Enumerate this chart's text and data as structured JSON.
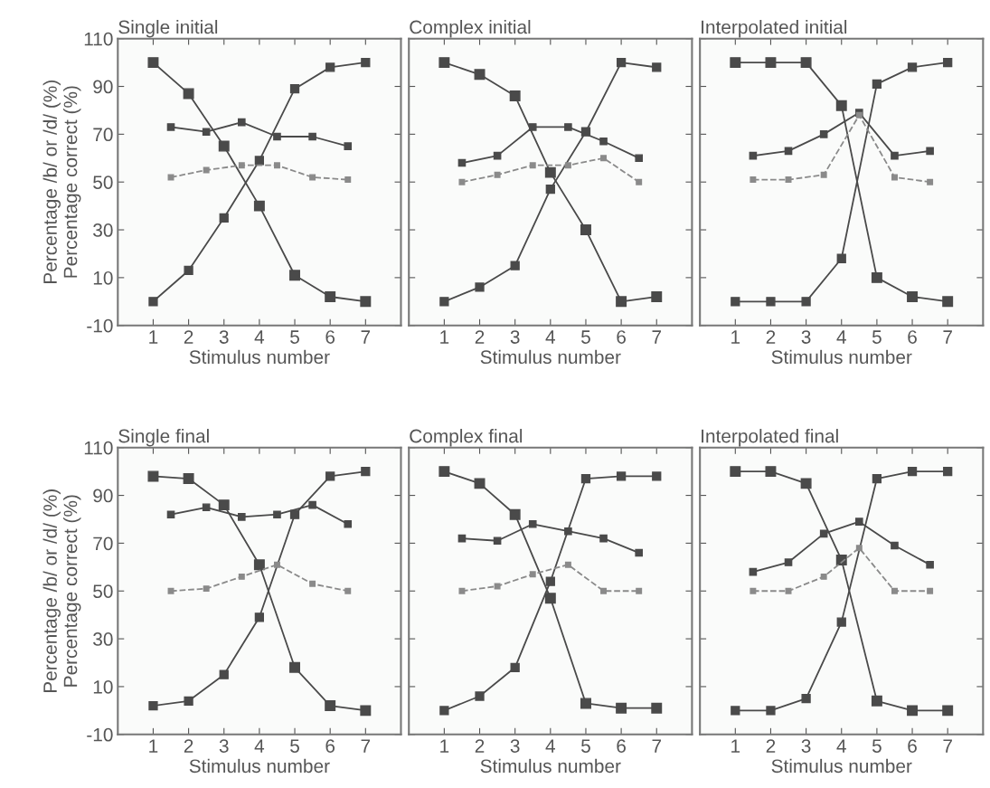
{
  "chart_data": [
    {
      "type": "line",
      "title": "Single initial",
      "xlabel": "Stimulus number",
      "ylabel": "Percentage /b/ or /d/ (%)\nPercentage correct (%)",
      "xlim": [
        0,
        8
      ],
      "xticks": [
        1,
        2,
        3,
        4,
        5,
        6,
        7
      ],
      "ylim": [
        -10,
        110
      ],
      "yticks": [
        -10,
        10,
        30,
        50,
        70,
        90,
        110
      ],
      "marker": "square",
      "grid": false,
      "series": [
        {
          "color": "#4a4a4a",
          "x": [
            1,
            2,
            3,
            4,
            5,
            6,
            7
          ],
          "values": [
            100,
            87,
            65,
            40,
            11,
            2,
            0
          ]
        },
        {
          "color": "#4a4a4a",
          "x": [
            1,
            2,
            3,
            4,
            5,
            6,
            7
          ],
          "values": [
            0,
            13,
            35,
            59,
            89,
            98,
            100
          ]
        },
        {
          "color": "#4a4a4a",
          "x": [
            1.5,
            2.5,
            3.5,
            4.5,
            5.5,
            6.5
          ],
          "values": [
            73,
            71,
            75,
            69,
            69,
            65
          ]
        },
        {
          "color": "#8a8a8a",
          "line_style": "dashed",
          "x": [
            1.5,
            2.5,
            3.5,
            4.5,
            5.5,
            6.5
          ],
          "values": [
            52,
            55,
            57,
            57,
            52,
            51
          ]
        }
      ]
    },
    {
      "type": "line",
      "title": "Complex initial",
      "xlabel": "Stimulus number",
      "xlim": [
        0,
        8
      ],
      "xticks": [
        1,
        2,
        3,
        4,
        5,
        6,
        7
      ],
      "ylim": [
        -10,
        110
      ],
      "yticks": [
        -10,
        10,
        30,
        50,
        70,
        90,
        110
      ],
      "tick_labels": "x",
      "marker": "square",
      "grid": false,
      "series": [
        {
          "color": "#4a4a4a",
          "x": [
            1,
            2,
            3,
            4,
            5,
            6,
            7
          ],
          "values": [
            100,
            95,
            86,
            54,
            30,
            0,
            2
          ]
        },
        {
          "color": "#4a4a4a",
          "x": [
            1,
            2,
            3,
            4,
            5,
            6,
            7
          ],
          "values": [
            0,
            6,
            15,
            47,
            71,
            100,
            98
          ]
        },
        {
          "color": "#4a4a4a",
          "x": [
            1.5,
            2.5,
            3.5,
            4.5,
            5.5,
            6.5
          ],
          "values": [
            58,
            61,
            73,
            73,
            67,
            60
          ]
        },
        {
          "color": "#8a8a8a",
          "line_style": "dashed",
          "x": [
            1.5,
            2.5,
            3.5,
            4.5,
            5.5,
            6.5
          ],
          "values": [
            50,
            53,
            57,
            57,
            60,
            50
          ]
        }
      ]
    },
    {
      "type": "line",
      "title": "Interpolated initial",
      "xlabel": "Stimulus number",
      "xlim": [
        0,
        8
      ],
      "xticks": [
        1,
        2,
        3,
        4,
        5,
        6,
        7
      ],
      "ylim": [
        -10,
        110
      ],
      "yticks": [
        -10,
        10,
        30,
        50,
        70,
        90,
        110
      ],
      "tick_labels": "x",
      "marker": "square",
      "grid": false,
      "series": [
        {
          "color": "#4a4a4a",
          "x": [
            1,
            2,
            3,
            4,
            5,
            6,
            7
          ],
          "values": [
            100,
            100,
            100,
            82,
            10,
            2,
            0
          ]
        },
        {
          "color": "#4a4a4a",
          "x": [
            1,
            2,
            3,
            4,
            5,
            6,
            7
          ],
          "values": [
            0,
            0,
            0,
            18,
            91,
            98,
            100
          ]
        },
        {
          "color": "#4a4a4a",
          "x": [
            1.5,
            2.5,
            3.5,
            4.5,
            5.5,
            6.5
          ],
          "values": [
            61,
            63,
            70,
            79,
            61,
            63
          ]
        },
        {
          "color": "#8a8a8a",
          "line_style": "dashed",
          "x": [
            1.5,
            2.5,
            3.5,
            4.5,
            5.5,
            6.5
          ],
          "values": [
            51,
            51,
            53,
            78,
            52,
            50
          ]
        }
      ]
    },
    {
      "type": "line",
      "title": "Single final",
      "xlabel": "Stimulus number",
      "ylabel": "Percentage /b/ or /d/ (%)\nPercentage correct (%)",
      "xlim": [
        0,
        8
      ],
      "xticks": [
        1,
        2,
        3,
        4,
        5,
        6,
        7
      ],
      "ylim": [
        -10,
        110
      ],
      "yticks": [
        -10,
        10,
        30,
        50,
        70,
        90,
        110
      ],
      "marker": "square",
      "grid": false,
      "series": [
        {
          "color": "#4a4a4a",
          "x": [
            1,
            2,
            3,
            4,
            5,
            6,
            7
          ],
          "values": [
            98,
            97,
            86,
            61,
            18,
            2,
            0
          ]
        },
        {
          "color": "#4a4a4a",
          "x": [
            1,
            2,
            3,
            4,
            5,
            6,
            7
          ],
          "values": [
            2,
            4,
            15,
            39,
            82,
            98,
            100
          ]
        },
        {
          "color": "#4a4a4a",
          "x": [
            1.5,
            2.5,
            3.5,
            4.5,
            5.5,
            6.5
          ],
          "values": [
            82,
            85,
            81,
            82,
            86,
            78
          ]
        },
        {
          "color": "#8a8a8a",
          "line_style": "dashed",
          "x": [
            1.5,
            2.5,
            3.5,
            4.5,
            5.5,
            6.5
          ],
          "values": [
            50,
            51,
            56,
            61,
            53,
            50
          ]
        }
      ]
    },
    {
      "type": "line",
      "title": "Complex final",
      "xlabel": "Stimulus number",
      "xlim": [
        0,
        8
      ],
      "xticks": [
        1,
        2,
        3,
        4,
        5,
        6,
        7
      ],
      "ylim": [
        -10,
        110
      ],
      "yticks": [
        -10,
        10,
        30,
        50,
        70,
        90,
        110
      ],
      "tick_labels": "x",
      "marker": "square",
      "grid": false,
      "series": [
        {
          "color": "#4a4a4a",
          "x": [
            1,
            2,
            3,
            4,
            5,
            6,
            7
          ],
          "values": [
            100,
            95,
            82,
            47,
            3,
            1,
            1
          ]
        },
        {
          "color": "#4a4a4a",
          "x": [
            1,
            2,
            3,
            4,
            5,
            6,
            7
          ],
          "values": [
            0,
            6,
            18,
            54,
            97,
            98,
            98
          ]
        },
        {
          "color": "#4a4a4a",
          "x": [
            1.5,
            2.5,
            3.5,
            4.5,
            5.5,
            6.5
          ],
          "values": [
            72,
            71,
            78,
            75,
            72,
            66
          ]
        },
        {
          "color": "#8a8a8a",
          "line_style": "dashed",
          "x": [
            1.5,
            2.5,
            3.5,
            4.5,
            5.5,
            6.5
          ],
          "values": [
            50,
            52,
            57,
            61,
            50,
            50
          ]
        }
      ]
    },
    {
      "type": "line",
      "title": "Interpolated final",
      "xlabel": "Stimulus number",
      "xlim": [
        0,
        8
      ],
      "xticks": [
        1,
        2,
        3,
        4,
        5,
        6,
        7
      ],
      "ylim": [
        -10,
        110
      ],
      "yticks": [
        -10,
        10,
        30,
        50,
        70,
        90,
        110
      ],
      "tick_labels": "x",
      "marker": "square",
      "grid": false,
      "series": [
        {
          "color": "#4a4a4a",
          "x": [
            1,
            2,
            3,
            4,
            5,
            6,
            7
          ],
          "values": [
            100,
            100,
            95,
            63,
            4,
            0,
            0
          ]
        },
        {
          "color": "#4a4a4a",
          "x": [
            1,
            2,
            3,
            4,
            5,
            6,
            7
          ],
          "values": [
            0,
            0,
            5,
            37,
            97,
            100,
            100
          ]
        },
        {
          "color": "#4a4a4a",
          "x": [
            1.5,
            2.5,
            3.5,
            4.5,
            5.5,
            6.5
          ],
          "values": [
            58,
            62,
            74,
            79,
            69,
            61
          ]
        },
        {
          "color": "#8a8a8a",
          "line_style": "dashed",
          "x": [
            1.5,
            2.5,
            3.5,
            4.5,
            5.5,
            6.5
          ],
          "values": [
            50,
            50,
            56,
            68,
            50,
            50
          ]
        }
      ]
    }
  ]
}
